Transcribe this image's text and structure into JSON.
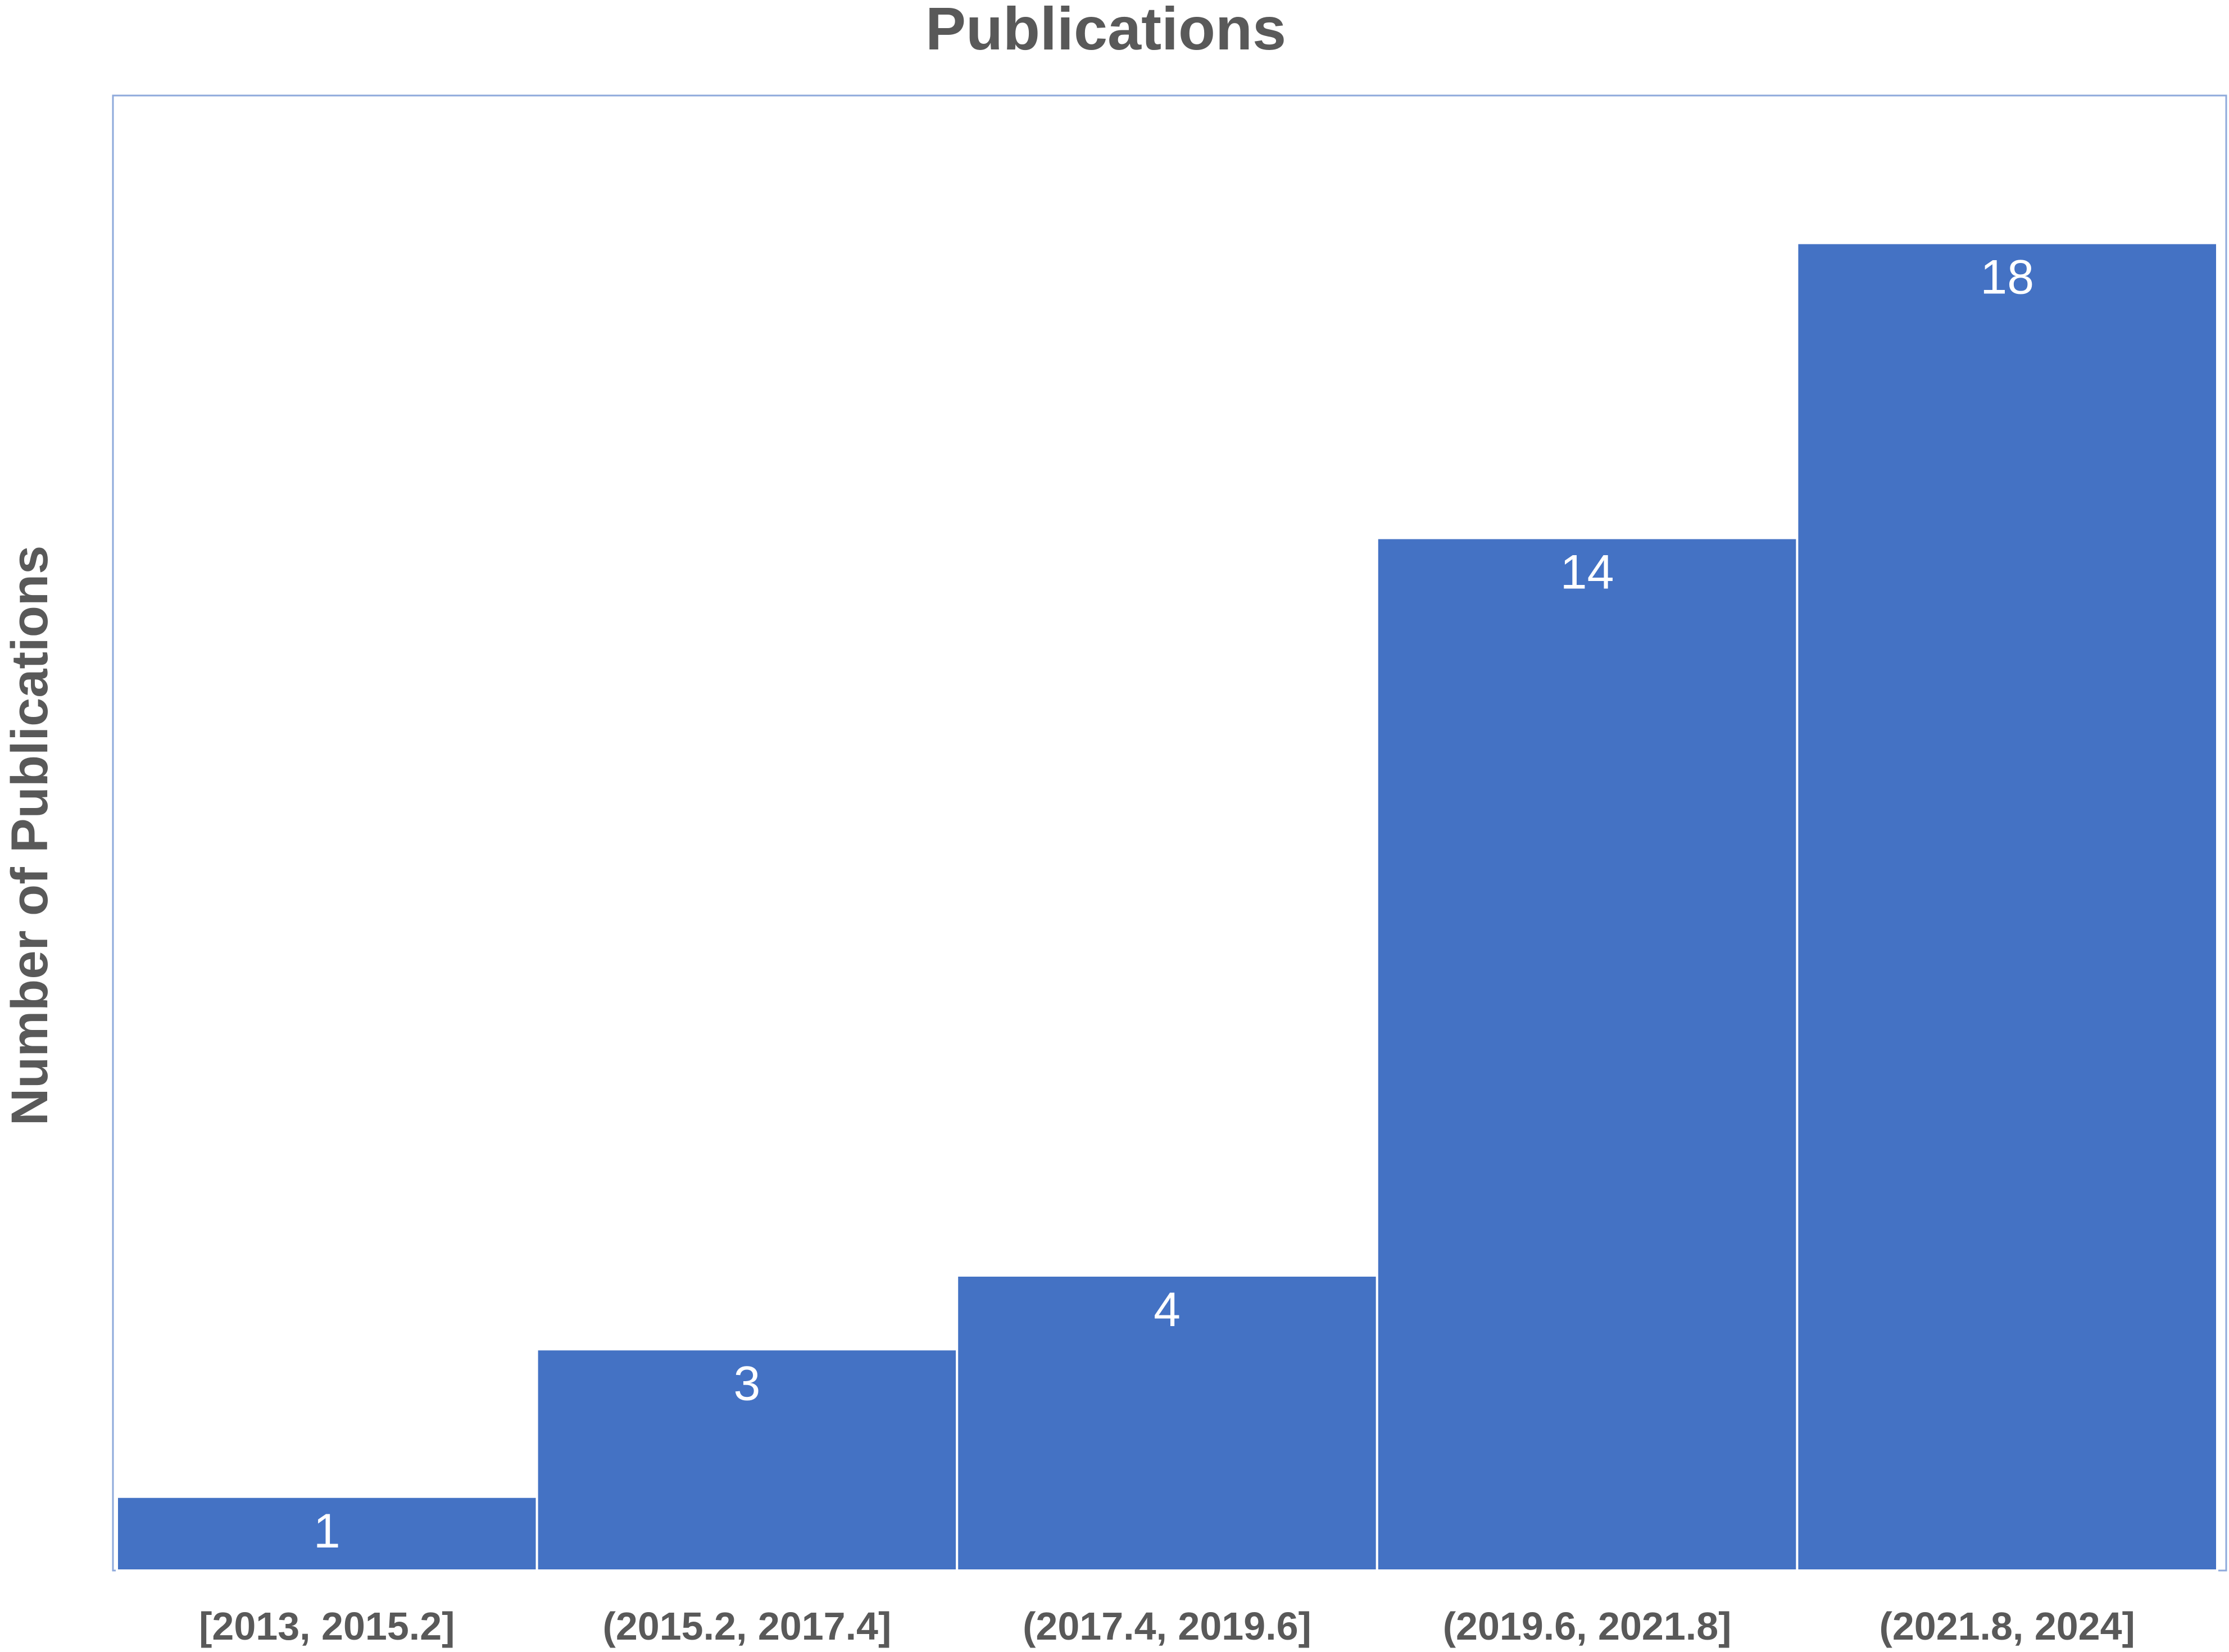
{
  "chart_data": {
    "type": "bar",
    "title": "Publications",
    "xlabel": "",
    "ylabel": "Number of Publications",
    "categories": [
      "[2013, 2015.2]",
      "(2015.2, 2017.4]",
      "(2017.4, 2019.6]",
      "(2019.6, 2021.8]",
      "(2021.8, 2024]"
    ],
    "values": [
      1,
      3,
      4,
      14,
      18
    ],
    "data_labels": [
      "1",
      "3",
      "4",
      "14",
      "18"
    ],
    "ylim": [
      0,
      20
    ],
    "grid": false,
    "legend": "none",
    "colors": {
      "bar": "#4472C4",
      "bar_border": "#ffffff",
      "plot_border": "#8EA9DB",
      "text": "#595959",
      "data_label": "#ffffff"
    }
  }
}
